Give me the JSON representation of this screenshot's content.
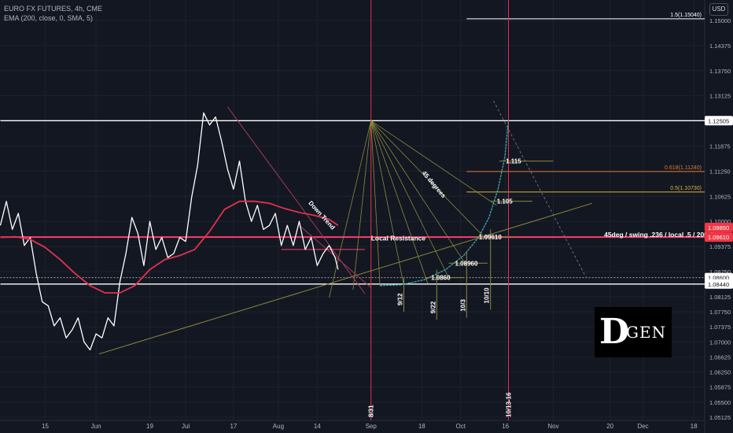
{
  "legend": {
    "symbol_line": "EURO FX FUTURES, 4h, CME",
    "indicator_line": "EMA (200, close, 0, SMA, 5)"
  },
  "currency_button": "USD",
  "logo": {
    "letter": "D",
    "text": "GEN"
  },
  "colors": {
    "background": "#131722",
    "price": "#ffffff",
    "ema": "#e0334c",
    "fib_line": "#8a8a3a",
    "resistance": "#ff3b6b",
    "vertical": "#e0334c",
    "arc": "#3fa9b0",
    "grid": "#1e222d",
    "axis_text": "#b2b5be"
  },
  "chart_data": {
    "type": "line",
    "ylim": [
      1.05125,
      1.15156
    ],
    "y_ticks": [
      "1.15000",
      "1.14375",
      "1.13750",
      "1.13125",
      "1.11875",
      "1.11250",
      "1.10625",
      "1.10000",
      "1.09375",
      "1.08750",
      "1.08125",
      "1.07750",
      "1.07375",
      "1.07000",
      "1.06625",
      "1.06250",
      "1.05875",
      "1.05500",
      "1.05125"
    ],
    "x_ticks": [
      {
        "label": "15",
        "d": 15
      },
      {
        "label": "Jun",
        "d": 32
      },
      {
        "label": "19",
        "d": 50
      },
      {
        "label": "Jul",
        "d": 62
      },
      {
        "label": "17",
        "d": 78
      },
      {
        "label": "Aug",
        "d": 93
      },
      {
        "label": "14",
        "d": 106
      },
      {
        "label": "Sep",
        "d": 124
      },
      {
        "label": "18",
        "d": 141
      },
      {
        "label": "Oct",
        "d": 154
      },
      {
        "label": "16",
        "d": 169
      },
      {
        "label": "Nov",
        "d": 185
      },
      {
        "label": "20",
        "d": 204
      },
      {
        "label": "Dec",
        "d": 215
      },
      {
        "label": "18",
        "d": 232
      }
    ],
    "series": [
      {
        "name": "EURO FX FUTURES",
        "x": [
          0,
          2,
          4,
          6,
          8,
          10,
          12,
          14,
          16,
          18,
          20,
          22,
          24,
          26,
          28,
          30,
          32,
          34,
          36,
          38,
          40,
          42,
          44,
          46,
          48,
          50,
          52,
          54,
          56,
          58,
          60,
          62,
          64,
          66,
          68,
          70,
          72,
          74,
          76,
          78,
          80,
          82,
          84,
          86,
          88,
          90,
          92,
          94,
          96,
          98,
          100,
          102,
          104,
          106,
          108,
          110,
          112,
          113
        ],
        "y": [
          1.099,
          1.105,
          1.098,
          1.102,
          1.094,
          1.096,
          1.087,
          1.08,
          1.079,
          1.074,
          1.076,
          1.071,
          1.073,
          1.076,
          1.07,
          1.068,
          1.072,
          1.071,
          1.076,
          1.074,
          1.085,
          1.092,
          1.101,
          1.097,
          1.089,
          1.1,
          1.093,
          1.096,
          1.091,
          1.092,
          1.096,
          1.095,
          1.106,
          1.114,
          1.127,
          1.124,
          1.126,
          1.12,
          1.113,
          1.108,
          1.115,
          1.105,
          1.1,
          1.104,
          1.098,
          1.099,
          1.102,
          1.094,
          1.099,
          1.094,
          1.1,
          1.093,
          1.096,
          1.089,
          1.092,
          1.094,
          1.091,
          1.088
        ]
      },
      {
        "name": "EMA (200, close, 0, SMA, 5)",
        "x": [
          0,
          5,
          10,
          15,
          20,
          25,
          30,
          35,
          40,
          45,
          50,
          55,
          60,
          65,
          70,
          75,
          80,
          85,
          90,
          95,
          100,
          105,
          110,
          113
        ],
        "y": [
          1.096,
          1.0962,
          1.0955,
          1.0935,
          1.0905,
          1.087,
          1.084,
          1.0822,
          1.0822,
          1.084,
          1.088,
          1.0905,
          1.0915,
          1.093,
          1.0975,
          1.103,
          1.105,
          1.105,
          1.1045,
          1.1032,
          1.1022,
          1.1015,
          1.1005,
          1.099
        ]
      }
    ],
    "price_labels": [
      {
        "text": "1.12505",
        "value": 1.12505
      },
      {
        "text": "1.09850",
        "value": 1.0985
      },
      {
        "text": "1.09610",
        "value": 1.0961
      },
      {
        "text": "1.08600",
        "value": 1.086
      },
      {
        "text": "1.08440",
        "value": 1.0844
      }
    ],
    "horizontal_levels": [
      {
        "value": 1.12505,
        "kind": "white",
        "x1": 0,
        "x2": 240
      },
      {
        "value": 1.0961,
        "kind": "resistance",
        "x1": 0,
        "x2": 240
      },
      {
        "value": 1.086,
        "kind": "dash",
        "x1": 0,
        "x2": 240
      },
      {
        "value": 1.0844,
        "kind": "white",
        "x1": 0,
        "x2": 240
      }
    ],
    "fib_levels": [
      {
        "text": "1.5(1.15040)",
        "value": 1.1504
      },
      {
        "text": "0.618(1.11240)",
        "value": 1.1124
      },
      {
        "text": "0.5(1.10730)",
        "value": 1.1073
      }
    ],
    "fan_origin": {
      "x": 124,
      "y": 1.12505
    },
    "fan_targets": [
      {
        "x": 110,
        "y": 1.081
      },
      {
        "x": 118,
        "y": 1.083
      },
      {
        "x": 127,
        "y": 1.084
      },
      {
        "x": 135,
        "y": 1.084
      },
      {
        "x": 143,
        "y": 1.0845
      },
      {
        "x": 150,
        "y": 1.086
      },
      {
        "x": 156,
        "y": 1.089
      },
      {
        "x": 162,
        "y": 1.096
      },
      {
        "x": 166,
        "y": 1.104
      }
    ],
    "arc_points": [
      {
        "x": 127,
        "y": 1.084
      },
      {
        "x": 134,
        "y": 1.0842
      },
      {
        "x": 142,
        "y": 1.0855
      },
      {
        "x": 149,
        "y": 1.088
      },
      {
        "x": 155,
        "y": 1.0915
      },
      {
        "x": 160,
        "y": 1.096
      },
      {
        "x": 163.5,
        "y": 1.101
      },
      {
        "x": 166.5,
        "y": 1.108
      },
      {
        "x": 168.8,
        "y": 1.116
      },
      {
        "x": 170,
        "y": 1.12505
      }
    ],
    "arc_levels": [
      {
        "text": "1.0860",
        "value": 1.086,
        "x1": 142,
        "x2": 155
      },
      {
        "text": "1.08960",
        "value": 1.0896,
        "x1": 150,
        "x2": 163
      },
      {
        "text": "1.09610",
        "value": 1.0961,
        "x1": 158,
        "x2": 172
      },
      {
        "text": "1.105",
        "value": 1.105,
        "x1": 164,
        "x2": 178
      },
      {
        "text": "1.115",
        "value": 1.115,
        "x1": 167,
        "x2": 185
      }
    ],
    "date_marks": [
      {
        "text": "9/12",
        "x": 135,
        "y_top": 1.086,
        "y_bottom": 1.0775
      },
      {
        "text": "9/22",
        "x": 146,
        "y_top": 1.088,
        "y_bottom": 1.0755
      },
      {
        "text": "10/3",
        "x": 156,
        "y_top": 1.0925,
        "y_bottom": 1.076
      },
      {
        "text": "10/10",
        "x": 164,
        "y_top": 1.098,
        "y_bottom": 1.078
      }
    ],
    "verticals": [
      {
        "text": "8/31",
        "x": 124
      },
      {
        "text": "10/13-16",
        "x": 170
      }
    ],
    "trendlines": [
      {
        "kind": "down",
        "x1": 76,
        "y1": 1.1285,
        "x2": 122,
        "y2": 1.082
      },
      {
        "kind": "down",
        "x1": 100,
        "y1": 1.099,
        "x2": 124,
        "y2": 1.0835
      },
      {
        "kind": "dashed",
        "x1": 165,
        "y1": 1.13,
        "x2": 196,
        "y2": 1.086
      },
      {
        "kind": "support",
        "x1": 33,
        "y1": 1.067,
        "x2": 198,
        "y2": 1.1045
      }
    ],
    "local_resistance": {
      "value": 1.093,
      "x1": 94,
      "x2": 122,
      "label_x": 117
    },
    "annotations": [
      {
        "text": "Down Trend",
        "x": 103,
        "y": 1.1045,
        "rotate": 48
      },
      {
        "text": "45 degrees",
        "x": 141,
        "y": 1.112,
        "rotate": 50
      },
      {
        "text": "Local Resistance",
        "x": 124,
        "y": 1.0952,
        "rotate": 0
      },
      {
        "text": "45deg / swing .236 / local .5 / 200 EMA",
        "x": 202,
        "y": 1.0961,
        "rotate": 0
      }
    ]
  }
}
